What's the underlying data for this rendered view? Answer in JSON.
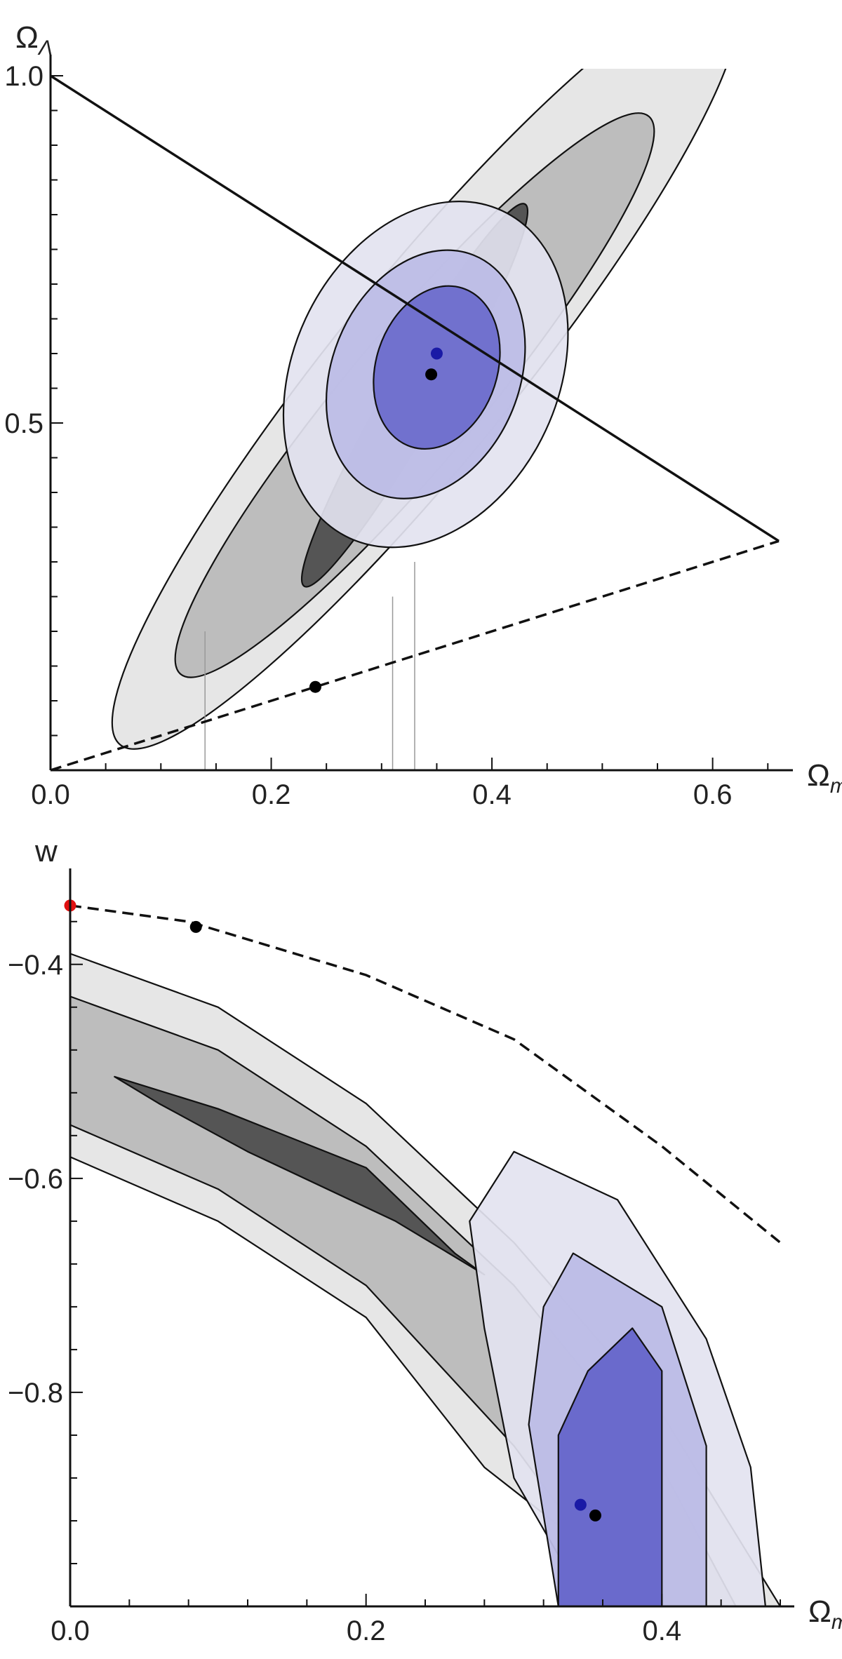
{
  "chart_data": [
    {
      "type": "scatter",
      "xlabel": "Ω",
      "xlabel_sub": "m",
      "ylabel": "Ω",
      "ylabel_sub": "Λ",
      "xlim": [
        0.0,
        0.66
      ],
      "ylim": [
        0.0,
        1.0
      ],
      "x_ticks": [
        "0.0",
        "0.2",
        "0.4",
        "0.6"
      ],
      "x_tick_values": [
        0.0,
        0.2,
        0.4,
        0.6
      ],
      "y_ticks": [
        "0.5",
        "1.0"
      ],
      "y_tick_values": [
        0.5,
        1.0
      ],
      "colors": {
        "gray_outer": "#e6e6e6",
        "gray_mid": "#bdbdbd",
        "gray_inner": "#555555",
        "blue_outer": "#e3e3f0",
        "blue_mid": "#bcbce6",
        "blue_inner": "#6a6acc",
        "blue_point": "#1a1aa6",
        "black_point": "#000000"
      },
      "contours": {
        "gray": [
          {
            "level": "outer",
            "cx": 0.34,
            "cy": 0.58,
            "rx": 0.44,
            "ry": 0.13,
            "angle_deg": -51
          },
          {
            "level": "mid",
            "cx": 0.33,
            "cy": 0.54,
            "rx": 0.33,
            "ry": 0.095,
            "angle_deg": -50
          },
          {
            "level": "inner",
            "cx": 0.33,
            "cy": 0.54,
            "rx": 0.2,
            "ry": 0.04,
            "angle_deg": -60
          }
        ],
        "blue": [
          {
            "level": "outer",
            "cx": 0.34,
            "cy": 0.57,
            "rx": 0.12,
            "ry": 0.26,
            "angle_deg": 25
          },
          {
            "level": "mid",
            "cx": 0.34,
            "cy": 0.57,
            "rx": 0.085,
            "ry": 0.185,
            "angle_deg": 22
          },
          {
            "level": "inner",
            "cx": 0.35,
            "cy": 0.58,
            "rx": 0.055,
            "ry": 0.12,
            "angle_deg": 18
          }
        ]
      },
      "lines": [
        {
          "style": "solid",
          "x": [
            0.0,
            0.66
          ],
          "y": [
            1.0,
            0.33
          ]
        },
        {
          "style": "dashed",
          "x": [
            0.0,
            0.66
          ],
          "y": [
            0.0,
            0.33
          ]
        }
      ],
      "vertical_guides_x": [
        0.14,
        0.31,
        0.33
      ],
      "points": [
        {
          "x": 0.35,
          "y": 0.6,
          "color": "blue"
        },
        {
          "x": 0.345,
          "y": 0.57,
          "color": "black"
        },
        {
          "x": 0.24,
          "y": 0.12,
          "color": "black"
        }
      ]
    },
    {
      "type": "scatter",
      "xlabel": "Ω",
      "xlabel_sub": "m",
      "ylabel": "w",
      "xlim": [
        0.0,
        0.48
      ],
      "ylim": [
        -1.0,
        -0.33
      ],
      "x_ticks": [
        "0.0",
        "0.2",
        "0.4"
      ],
      "x_tick_values": [
        0.0,
        0.2,
        0.4
      ],
      "y_ticks": [
        "-0.4",
        "-0.6",
        "-0.8"
      ],
      "y_tick_values": [
        -0.4,
        -0.6,
        -0.8
      ],
      "colors": {
        "gray_outer": "#e6e6e6",
        "gray_mid": "#bdbdbd",
        "gray_inner": "#555555",
        "blue_outer": "#e3e3f0",
        "blue_mid": "#bcbce6",
        "blue_inner": "#6a6acc",
        "blue_point": "#1a1aa6",
        "black_point": "#000000",
        "red_point": "#e01010"
      },
      "bands": {
        "gray_outer": {
          "upper": [
            [
              0.0,
              -0.39
            ],
            [
              0.1,
              -0.44
            ],
            [
              0.2,
              -0.53
            ],
            [
              0.3,
              -0.66
            ],
            [
              0.4,
              -0.82
            ],
            [
              0.48,
              -1.0
            ]
          ],
          "lower": [
            [
              0.0,
              -0.58
            ],
            [
              0.1,
              -0.64
            ],
            [
              0.2,
              -0.73
            ],
            [
              0.28,
              -0.87
            ],
            [
              0.4,
              -1.0
            ]
          ]
        },
        "gray_mid": {
          "upper": [
            [
              0.0,
              -0.43
            ],
            [
              0.1,
              -0.48
            ],
            [
              0.2,
              -0.57
            ],
            [
              0.3,
              -0.7
            ],
            [
              0.4,
              -0.87
            ],
            [
              0.45,
              -1.0
            ]
          ],
          "lower": [
            [
              0.0,
              -0.55
            ],
            [
              0.1,
              -0.61
            ],
            [
              0.2,
              -0.7
            ],
            [
              0.3,
              -0.85
            ],
            [
              0.38,
              -1.0
            ]
          ]
        }
      },
      "contours": {
        "gray_inner": [
          [
            0.03,
            -0.505
          ],
          [
            0.1,
            -0.535
          ],
          [
            0.2,
            -0.59
          ],
          [
            0.26,
            -0.67
          ],
          [
            0.28,
            -0.69
          ],
          [
            0.22,
            -0.64
          ],
          [
            0.12,
            -0.575
          ],
          [
            0.06,
            -0.53
          ]
        ],
        "blue_outer": [
          [
            0.3,
            -0.575
          ],
          [
            0.37,
            -0.62
          ],
          [
            0.43,
            -0.75
          ],
          [
            0.46,
            -0.87
          ],
          [
            0.47,
            -1.0
          ],
          [
            0.35,
            -1.0
          ],
          [
            0.3,
            -0.88
          ],
          [
            0.28,
            -0.74
          ],
          [
            0.27,
            -0.64
          ]
        ],
        "blue_mid": [
          [
            0.34,
            -0.67
          ],
          [
            0.4,
            -0.72
          ],
          [
            0.43,
            -0.85
          ],
          [
            0.43,
            -1.0
          ],
          [
            0.33,
            -1.0
          ],
          [
            0.31,
            -0.83
          ],
          [
            0.32,
            -0.72
          ]
        ],
        "blue_inner": [
          [
            0.38,
            -0.74
          ],
          [
            0.4,
            -0.78
          ],
          [
            0.4,
            -1.0
          ],
          [
            0.33,
            -1.0
          ],
          [
            0.33,
            -0.84
          ],
          [
            0.35,
            -0.78
          ]
        ]
      },
      "lines": [
        {
          "style": "dashed",
          "x": [
            0.0,
            0.08,
            0.2,
            0.3,
            0.4,
            0.48
          ],
          "y": [
            -0.345,
            -0.36,
            -0.41,
            -0.47,
            -0.57,
            -0.66
          ]
        }
      ],
      "points": [
        {
          "x": 0.0,
          "y": -0.345,
          "color": "red"
        },
        {
          "x": 0.085,
          "y": -0.365,
          "color": "black"
        },
        {
          "x": 0.345,
          "y": -0.905,
          "color": "blue"
        },
        {
          "x": 0.355,
          "y": -0.915,
          "color": "black"
        }
      ]
    }
  ]
}
